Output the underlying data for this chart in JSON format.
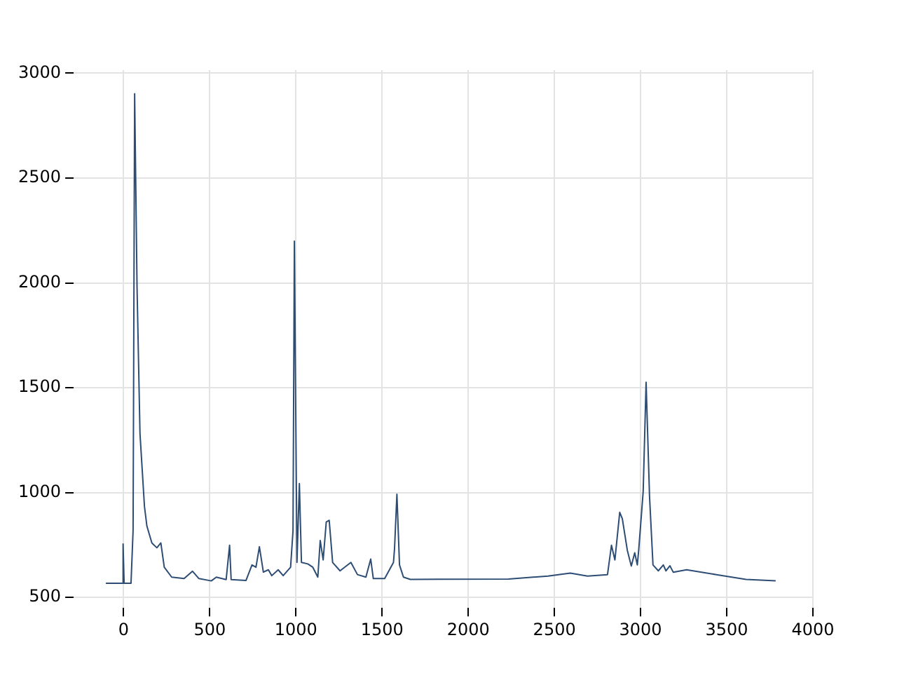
{
  "chart_data": {
    "type": "line",
    "color": "#2e4d74",
    "grid": true,
    "marker": "none",
    "line_style": "solid",
    "xlim": [
      -290,
      4000
    ],
    "xticks": [
      0,
      500,
      1000,
      1500,
      2000,
      2500,
      3000,
      3500,
      4000
    ],
    "ylim": [
      450,
      3015
    ],
    "yticks": [
      500,
      1000,
      1500,
      2000,
      2500,
      3000
    ],
    "x": [
      -103,
      -9,
      -3,
      3,
      43,
      55,
      64,
      78,
      95,
      121,
      135,
      164,
      193,
      216,
      236,
      279,
      351,
      400,
      437,
      509,
      538,
      595,
      615,
      624,
      710,
      745,
      768,
      788,
      811,
      840,
      860,
      897,
      926,
      969,
      983,
      991,
      1006,
      1020,
      1032,
      1069,
      1098,
      1127,
      1141,
      1158,
      1176,
      1193,
      1213,
      1256,
      1319,
      1357,
      1406,
      1434,
      1449,
      1515,
      1566,
      1572,
      1586,
      1601,
      1624,
      1664,
      1831,
      2233,
      2463,
      2592,
      2692,
      2808,
      2831,
      2851,
      2879,
      2894,
      2923,
      2946,
      2966,
      2981,
      2989,
      3015,
      3032,
      3052,
      3072,
      3103,
      3132,
      3147,
      3170,
      3190,
      3267,
      3440,
      3612,
      3784
    ],
    "values": [
      568,
      568,
      755,
      568,
      568,
      820,
      2902,
      1978,
      1282,
      934,
      841,
      760,
      737,
      760,
      644,
      597,
      590,
      625,
      590,
      579,
      597,
      585,
      749,
      585,
      581,
      655,
      644,
      742,
      621,
      632,
      604,
      632,
      604,
      644,
      818,
      2199,
      667,
      1043,
      667,
      660,
      644,
      597,
      772,
      679,
      860,
      868,
      667,
      627,
      667,
      609,
      597,
      683,
      590,
      590,
      667,
      730,
      992,
      655,
      597,
      586,
      587,
      588,
      602,
      616,
      602,
      609,
      749,
      679,
      906,
      876,
      725,
      650,
      713,
      655,
      725,
      1004,
      1526,
      981,
      655,
      627,
      655,
      627,
      651,
      620,
      632,
      609,
      586,
      579
    ]
  }
}
